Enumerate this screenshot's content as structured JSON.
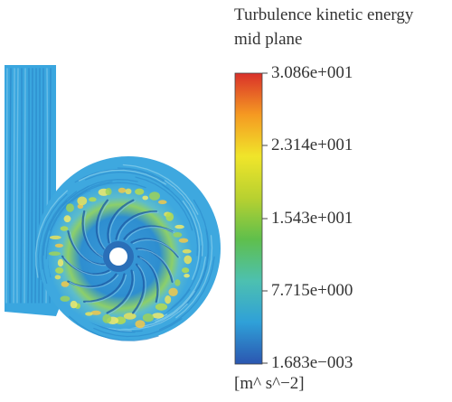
{
  "legend": {
    "title_line1": "Turbulence kinetic energy",
    "title_line2": "mid plane",
    "ticks": [
      "3.086e+001",
      "2.314e+001",
      "1.543e+001",
      "7.715e+000",
      "1.683e−003"
    ],
    "unit": "[m^ s^−2]",
    "colormap": [
      "#2b56b0",
      "#2fa0d8",
      "#4dc0b0",
      "#5fbf4c",
      "#b8d130",
      "#f0e52a",
      "#f59a22",
      "#d9302a"
    ]
  },
  "field": {
    "background_color": "#36a3dd",
    "inlet_color": "#3aa6df",
    "hotspot_color": "#e8e35a",
    "eye_color": "#ffffff"
  }
}
